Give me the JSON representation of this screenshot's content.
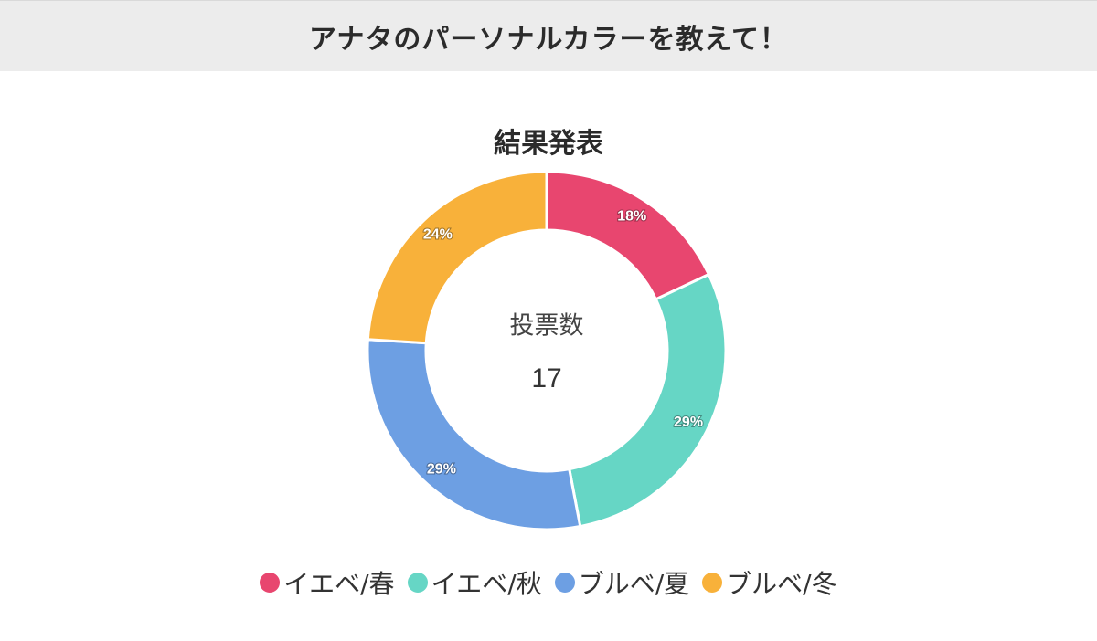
{
  "header": {
    "title": "アナタのパーソナルカラーを教えて！"
  },
  "chart_data": {
    "type": "pie",
    "title": "結果発表",
    "center_label": "投票数",
    "total": "17",
    "series": [
      {
        "name": "イエベ/春",
        "value": 18,
        "label": "18%",
        "color": "#e8466f"
      },
      {
        "name": "イエベ/秋",
        "value": 29,
        "label": "29%",
        "color": "#66d6c5"
      },
      {
        "name": "ブルベ/夏",
        "value": 29,
        "label": "29%",
        "color": "#6d9fe3"
      },
      {
        "name": "ブルベ/冬",
        "value": 24,
        "label": "24%",
        "color": "#f8b13a"
      }
    ],
    "legend_position": "bottom"
  }
}
